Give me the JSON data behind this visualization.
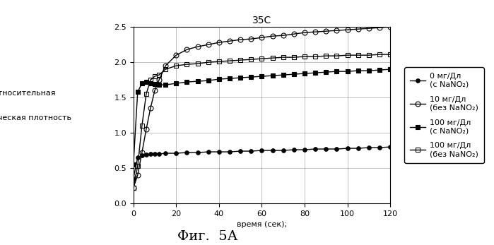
{
  "title": "35C",
  "xlabel": "время (сек);",
  "ylabel_line1": "относительная",
  "ylabel_line2": "оптическая плотность",
  "xlim": [
    0,
    120
  ],
  "ylim": [
    0,
    2.5
  ],
  "xticks": [
    0,
    20,
    40,
    60,
    80,
    100,
    120
  ],
  "yticks": [
    0,
    0.5,
    1.0,
    1.5,
    2.0,
    2.5
  ],
  "figcaption": "Фиг.  5А",
  "series": [
    {
      "label": "0 мг/Дл\n(с NaNO₂)",
      "marker": "o",
      "markersize": 4,
      "fillstyle": "full",
      "color": "black",
      "markevery": 1,
      "x": [
        0,
        2,
        4,
        6,
        8,
        10,
        12,
        15,
        20,
        25,
        30,
        35,
        40,
        45,
        50,
        55,
        60,
        65,
        70,
        75,
        80,
        85,
        90,
        95,
        100,
        105,
        110,
        115,
        120
      ],
      "y": [
        0.35,
        0.65,
        0.68,
        0.69,
        0.7,
        0.7,
        0.7,
        0.71,
        0.71,
        0.72,
        0.72,
        0.73,
        0.73,
        0.73,
        0.74,
        0.74,
        0.75,
        0.75,
        0.75,
        0.76,
        0.76,
        0.77,
        0.77,
        0.77,
        0.78,
        0.78,
        0.79,
        0.79,
        0.8
      ]
    },
    {
      "label": "10 мг/Дл\n(без NaNO₂)",
      "marker": "o",
      "markersize": 5,
      "fillstyle": "none",
      "color": "black",
      "markevery": 1,
      "x": [
        0,
        2,
        4,
        6,
        8,
        10,
        12,
        15,
        20,
        25,
        30,
        35,
        40,
        45,
        50,
        55,
        60,
        65,
        70,
        75,
        80,
        85,
        90,
        95,
        100,
        105,
        110,
        115,
        120
      ],
      "y": [
        0.22,
        0.4,
        0.72,
        1.05,
        1.35,
        1.6,
        1.75,
        1.95,
        2.1,
        2.18,
        2.22,
        2.25,
        2.28,
        2.3,
        2.32,
        2.33,
        2.35,
        2.37,
        2.38,
        2.4,
        2.42,
        2.43,
        2.44,
        2.45,
        2.46,
        2.47,
        2.48,
        2.49,
        2.5
      ]
    },
    {
      "label": "100 мг/Дл\n(с NaNO₂)",
      "marker": "s",
      "markersize": 4,
      "fillstyle": "full",
      "color": "black",
      "markevery": 1,
      "x": [
        0,
        2,
        4,
        6,
        8,
        10,
        12,
        15,
        20,
        25,
        30,
        35,
        40,
        45,
        50,
        55,
        60,
        65,
        70,
        75,
        80,
        85,
        90,
        95,
        100,
        105,
        110,
        115,
        120
      ],
      "y": [
        0.55,
        1.58,
        1.7,
        1.72,
        1.7,
        1.69,
        1.68,
        1.68,
        1.7,
        1.72,
        1.73,
        1.74,
        1.76,
        1.77,
        1.78,
        1.79,
        1.8,
        1.81,
        1.82,
        1.83,
        1.84,
        1.85,
        1.86,
        1.87,
        1.87,
        1.88,
        1.88,
        1.89,
        1.9
      ]
    },
    {
      "label": "100 мг/Дл\n(без NaNO₂)",
      "marker": "s",
      "markersize": 5,
      "fillstyle": "none",
      "color": "black",
      "markevery": 1,
      "x": [
        0,
        2,
        4,
        6,
        8,
        10,
        12,
        15,
        20,
        25,
        30,
        35,
        40,
        45,
        50,
        55,
        60,
        65,
        70,
        75,
        80,
        85,
        90,
        95,
        100,
        105,
        110,
        115,
        120
      ],
      "y": [
        0.22,
        0.53,
        1.1,
        1.55,
        1.75,
        1.8,
        1.82,
        1.9,
        1.95,
        1.97,
        1.98,
        2.0,
        2.01,
        2.02,
        2.03,
        2.04,
        2.05,
        2.06,
        2.07,
        2.07,
        2.08,
        2.08,
        2.09,
        2.09,
        2.1,
        2.1,
        2.1,
        2.11,
        2.11
      ]
    }
  ],
  "background_color": "white",
  "grid": true,
  "legend_fontsize": 8,
  "tick_fontsize": 8,
  "title_fontsize": 10,
  "xlabel_fontsize": 8
}
